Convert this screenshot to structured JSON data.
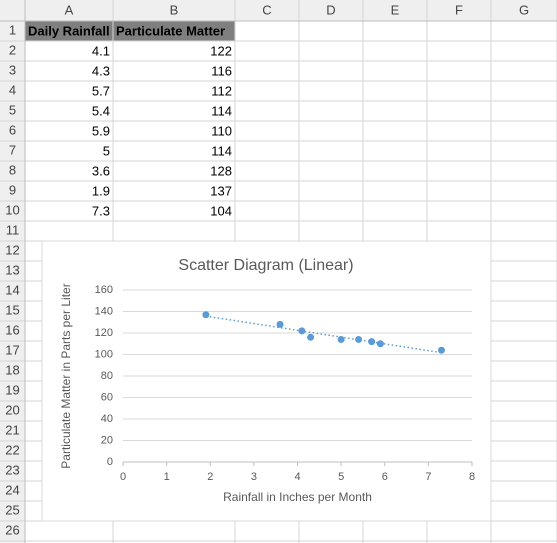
{
  "sheet": {
    "columns": [
      "A",
      "B",
      "C",
      "D",
      "E",
      "F",
      "G"
    ],
    "rows": [
      1,
      2,
      3,
      4,
      5,
      6,
      7,
      8,
      9,
      10,
      11,
      12,
      13,
      14,
      15,
      16,
      17,
      18,
      19,
      20,
      21,
      22,
      23,
      24,
      25,
      26
    ],
    "headers": [
      "Daily Rainfall",
      "Particulate Matter"
    ]
  },
  "chart_data": {
    "type": "scatter",
    "title": "Scatter Diagram (Linear)",
    "x_label": "Rainfall in Inches per Month",
    "y_label": "Particulate Matter in Parts per Liter",
    "x": [
      4.1,
      4.3,
      5.7,
      5.4,
      5.9,
      5,
      3.6,
      1.9,
      7.3
    ],
    "values": [
      122,
      116,
      112,
      114,
      110,
      114,
      128,
      137,
      104
    ],
    "color": "#5b9bd5",
    "xlim": [
      0,
      8
    ],
    "xticks": [
      0,
      1,
      2,
      3,
      4,
      5,
      6,
      7,
      8
    ],
    "ylim": [
      0,
      160
    ],
    "yticks": [
      0,
      20,
      40,
      60,
      80,
      100,
      120,
      140,
      160
    ],
    "grid": true,
    "trendline": "linear"
  }
}
